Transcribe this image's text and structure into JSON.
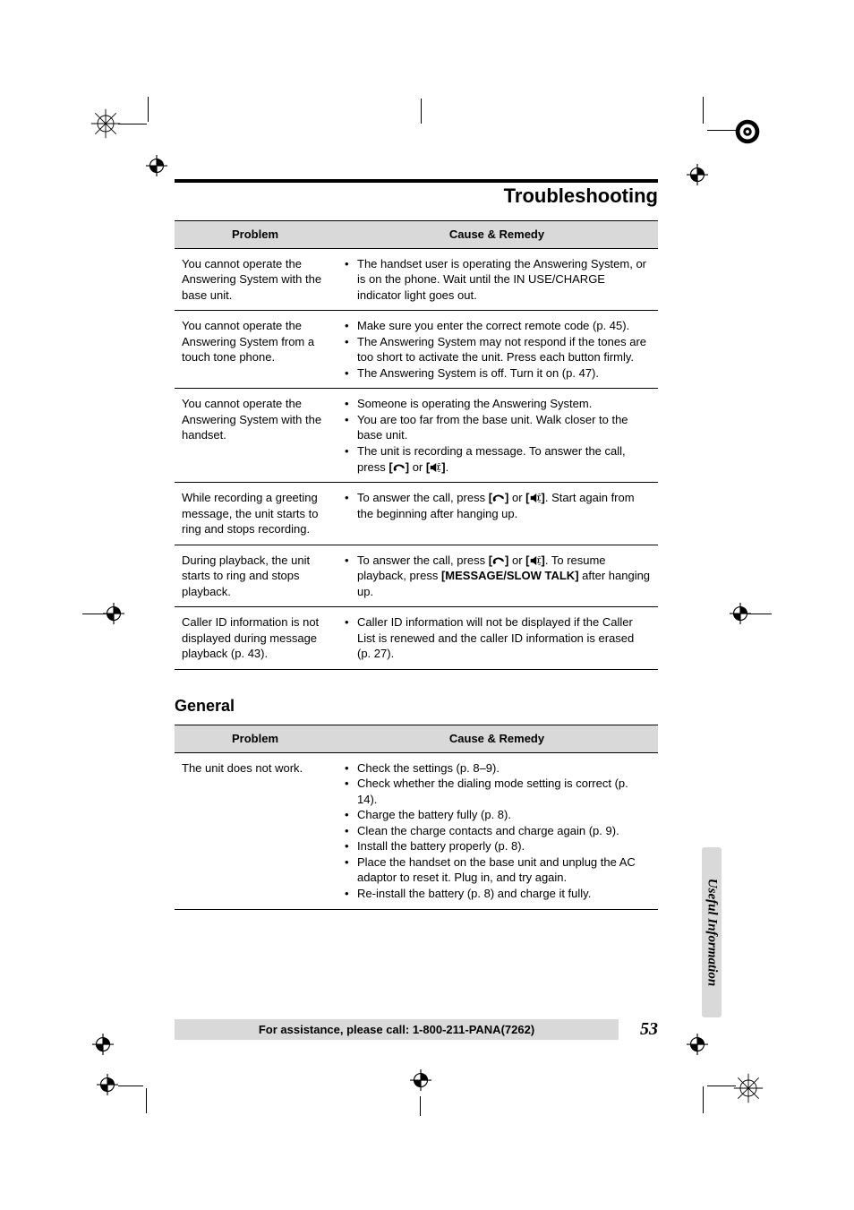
{
  "title": "Troubleshooting",
  "header_problem": "Problem",
  "header_remedy": "Cause & Remedy",
  "section_general": "General",
  "side_tab": "Useful Information",
  "assist": "For assistance, please call: 1-800-211-PANA(7262)",
  "page_number": "53",
  "t1": {
    "r1": {
      "p": "You cannot operate the Answering System with the base unit.",
      "c": [
        "The handset user is operating the Answering System, or is on the phone. Wait until the IN USE/CHARGE indicator light goes out."
      ]
    },
    "r2": {
      "p": "You cannot operate the Answering System from a touch tone phone.",
      "c": [
        "Make sure you enter the correct remote code (p. 45).",
        "The Answering System may not respond if the tones are too short to activate the unit. Press each button firmly.",
        "The Answering System is off. Turn it on (p. 47)."
      ]
    },
    "r3": {
      "p": "You cannot operate the Answering System with the handset.",
      "c": [
        "Someone is operating the Answering System.",
        "You are too far from the base unit. Walk closer to the base unit.",
        "The unit is recording a message. To answer the call, press [__TALK__] or [__SP__]."
      ]
    },
    "r4": {
      "p": "While recording a greeting message, the unit starts to ring and stops recording.",
      "c": [
        "To answer the call, press [__TALK__] or [__SP__]. Start again from the beginning after hanging up."
      ]
    },
    "r5": {
      "p": "During playback, the unit starts to ring and stops playback.",
      "c": [
        "To answer the call, press [__TALK__] or [__SP__]. To resume playback, press __B1__[MESSAGE/SLOW TALK]__B2__ after hanging up."
      ]
    },
    "r6": {
      "p": "Caller ID information is not displayed during message playback (p. 43).",
      "c": [
        "Caller ID information will not be displayed if the Caller List is renewed and the caller ID information is erased (p. 27)."
      ]
    }
  },
  "t2": {
    "r1": {
      "p": "The unit does not work.",
      "c": [
        "Check the settings (p. 8–9).",
        "Check whether the dialing mode setting is correct (p. 14).",
        "Charge the battery fully (p. 8).",
        "Clean the charge contacts and charge again (p. 9).",
        "Install the battery properly (p. 8).",
        "Place the handset on the base unit and unplug the AC adaptor to reset it. Plug in, and try again.",
        "Re-install the battery (p. 8) and charge it fully."
      ]
    }
  }
}
